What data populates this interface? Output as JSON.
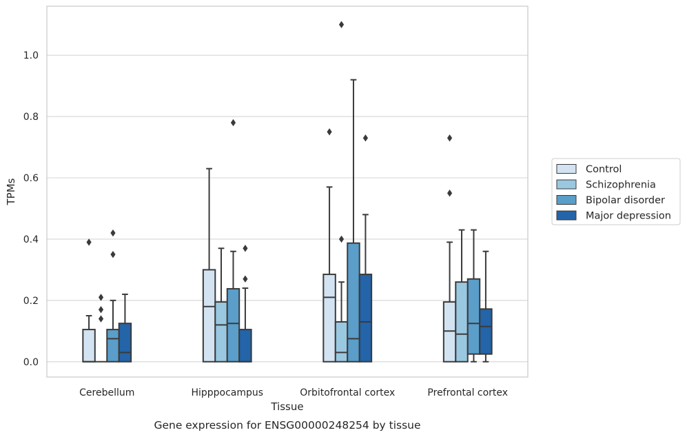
{
  "chart_data": {
    "type": "box",
    "xlabel": "Tissue",
    "ylabel": "TPMs",
    "caption": "Gene expression for ENSG00000248254 by tissue",
    "ylim": [
      -0.05,
      1.16
    ],
    "yticks": [
      "0.0",
      "0.2",
      "0.4",
      "0.6",
      "0.8",
      "1.0"
    ],
    "yticks_values": [
      0.0,
      0.2,
      0.4,
      0.6,
      0.8,
      1.0
    ],
    "grid": true,
    "legend_position": "right",
    "categories": [
      "Cerebellum",
      "Hipppocampus",
      "Orbitofrontal cortex",
      "Prefrontal cortex"
    ],
    "series": [
      {
        "name": "Control",
        "color": "#d3e3f2",
        "boxes": [
          {
            "min": 0.0,
            "q1": 0.0,
            "median": 0.0,
            "q3": 0.105,
            "max": 0.15,
            "outliers": [
              0.39
            ]
          },
          {
            "min": 0.0,
            "q1": 0.0,
            "median": 0.18,
            "q3": 0.3,
            "max": 0.63,
            "outliers": []
          },
          {
            "min": 0.0,
            "q1": 0.0,
            "median": 0.21,
            "q3": 0.285,
            "max": 0.57,
            "outliers": [
              0.75
            ]
          },
          {
            "min": 0.0,
            "q1": 0.0,
            "median": 0.1,
            "q3": 0.195,
            "max": 0.39,
            "outliers": [
              0.55,
              0.73
            ]
          }
        ]
      },
      {
        "name": "Schizophrenia",
        "color": "#9ac8e0",
        "boxes": [
          {
            "min": 0.0,
            "q1": 0.0,
            "median": 0.0,
            "q3": 0.0,
            "max": 0.0,
            "outliers": [
              0.14,
              0.17,
              0.21
            ]
          },
          {
            "min": 0.0,
            "q1": 0.0,
            "median": 0.12,
            "q3": 0.195,
            "max": 0.37,
            "outliers": []
          },
          {
            "min": 0.0,
            "q1": 0.0,
            "median": 0.03,
            "q3": 0.13,
            "max": 0.26,
            "outliers": [
              0.4,
              1.1
            ]
          },
          {
            "min": 0.0,
            "q1": 0.0,
            "median": 0.09,
            "q3": 0.26,
            "max": 0.43,
            "outliers": []
          }
        ]
      },
      {
        "name": "Bipolar disorder",
        "color": "#5a9ec9",
        "boxes": [
          {
            "min": 0.0,
            "q1": 0.0,
            "median": 0.075,
            "q3": 0.105,
            "max": 0.2,
            "outliers": [
              0.35,
              0.42
            ]
          },
          {
            "min": 0.0,
            "q1": 0.0,
            "median": 0.125,
            "q3": 0.238,
            "max": 0.36,
            "outliers": [
              0.78
            ]
          },
          {
            "min": 0.0,
            "q1": 0.0,
            "median": 0.075,
            "q3": 0.387,
            "max": 0.92,
            "outliers": []
          },
          {
            "min": 0.0,
            "q1": 0.025,
            "median": 0.125,
            "q3": 0.27,
            "max": 0.43,
            "outliers": []
          }
        ]
      },
      {
        "name": "Major depression",
        "color": "#2464a8",
        "boxes": [
          {
            "min": 0.0,
            "q1": 0.0,
            "median": 0.03,
            "q3": 0.125,
            "max": 0.22,
            "outliers": []
          },
          {
            "min": 0.0,
            "q1": 0.0,
            "median": 0.0,
            "q3": 0.105,
            "max": 0.24,
            "outliers": [
              0.27,
              0.37
            ]
          },
          {
            "min": 0.0,
            "q1": 0.0,
            "median": 0.13,
            "q3": 0.285,
            "max": 0.48,
            "outliers": [
              0.73
            ]
          },
          {
            "min": 0.0,
            "q1": 0.025,
            "median": 0.115,
            "q3": 0.172,
            "max": 0.36,
            "outliers": []
          }
        ]
      }
    ]
  }
}
